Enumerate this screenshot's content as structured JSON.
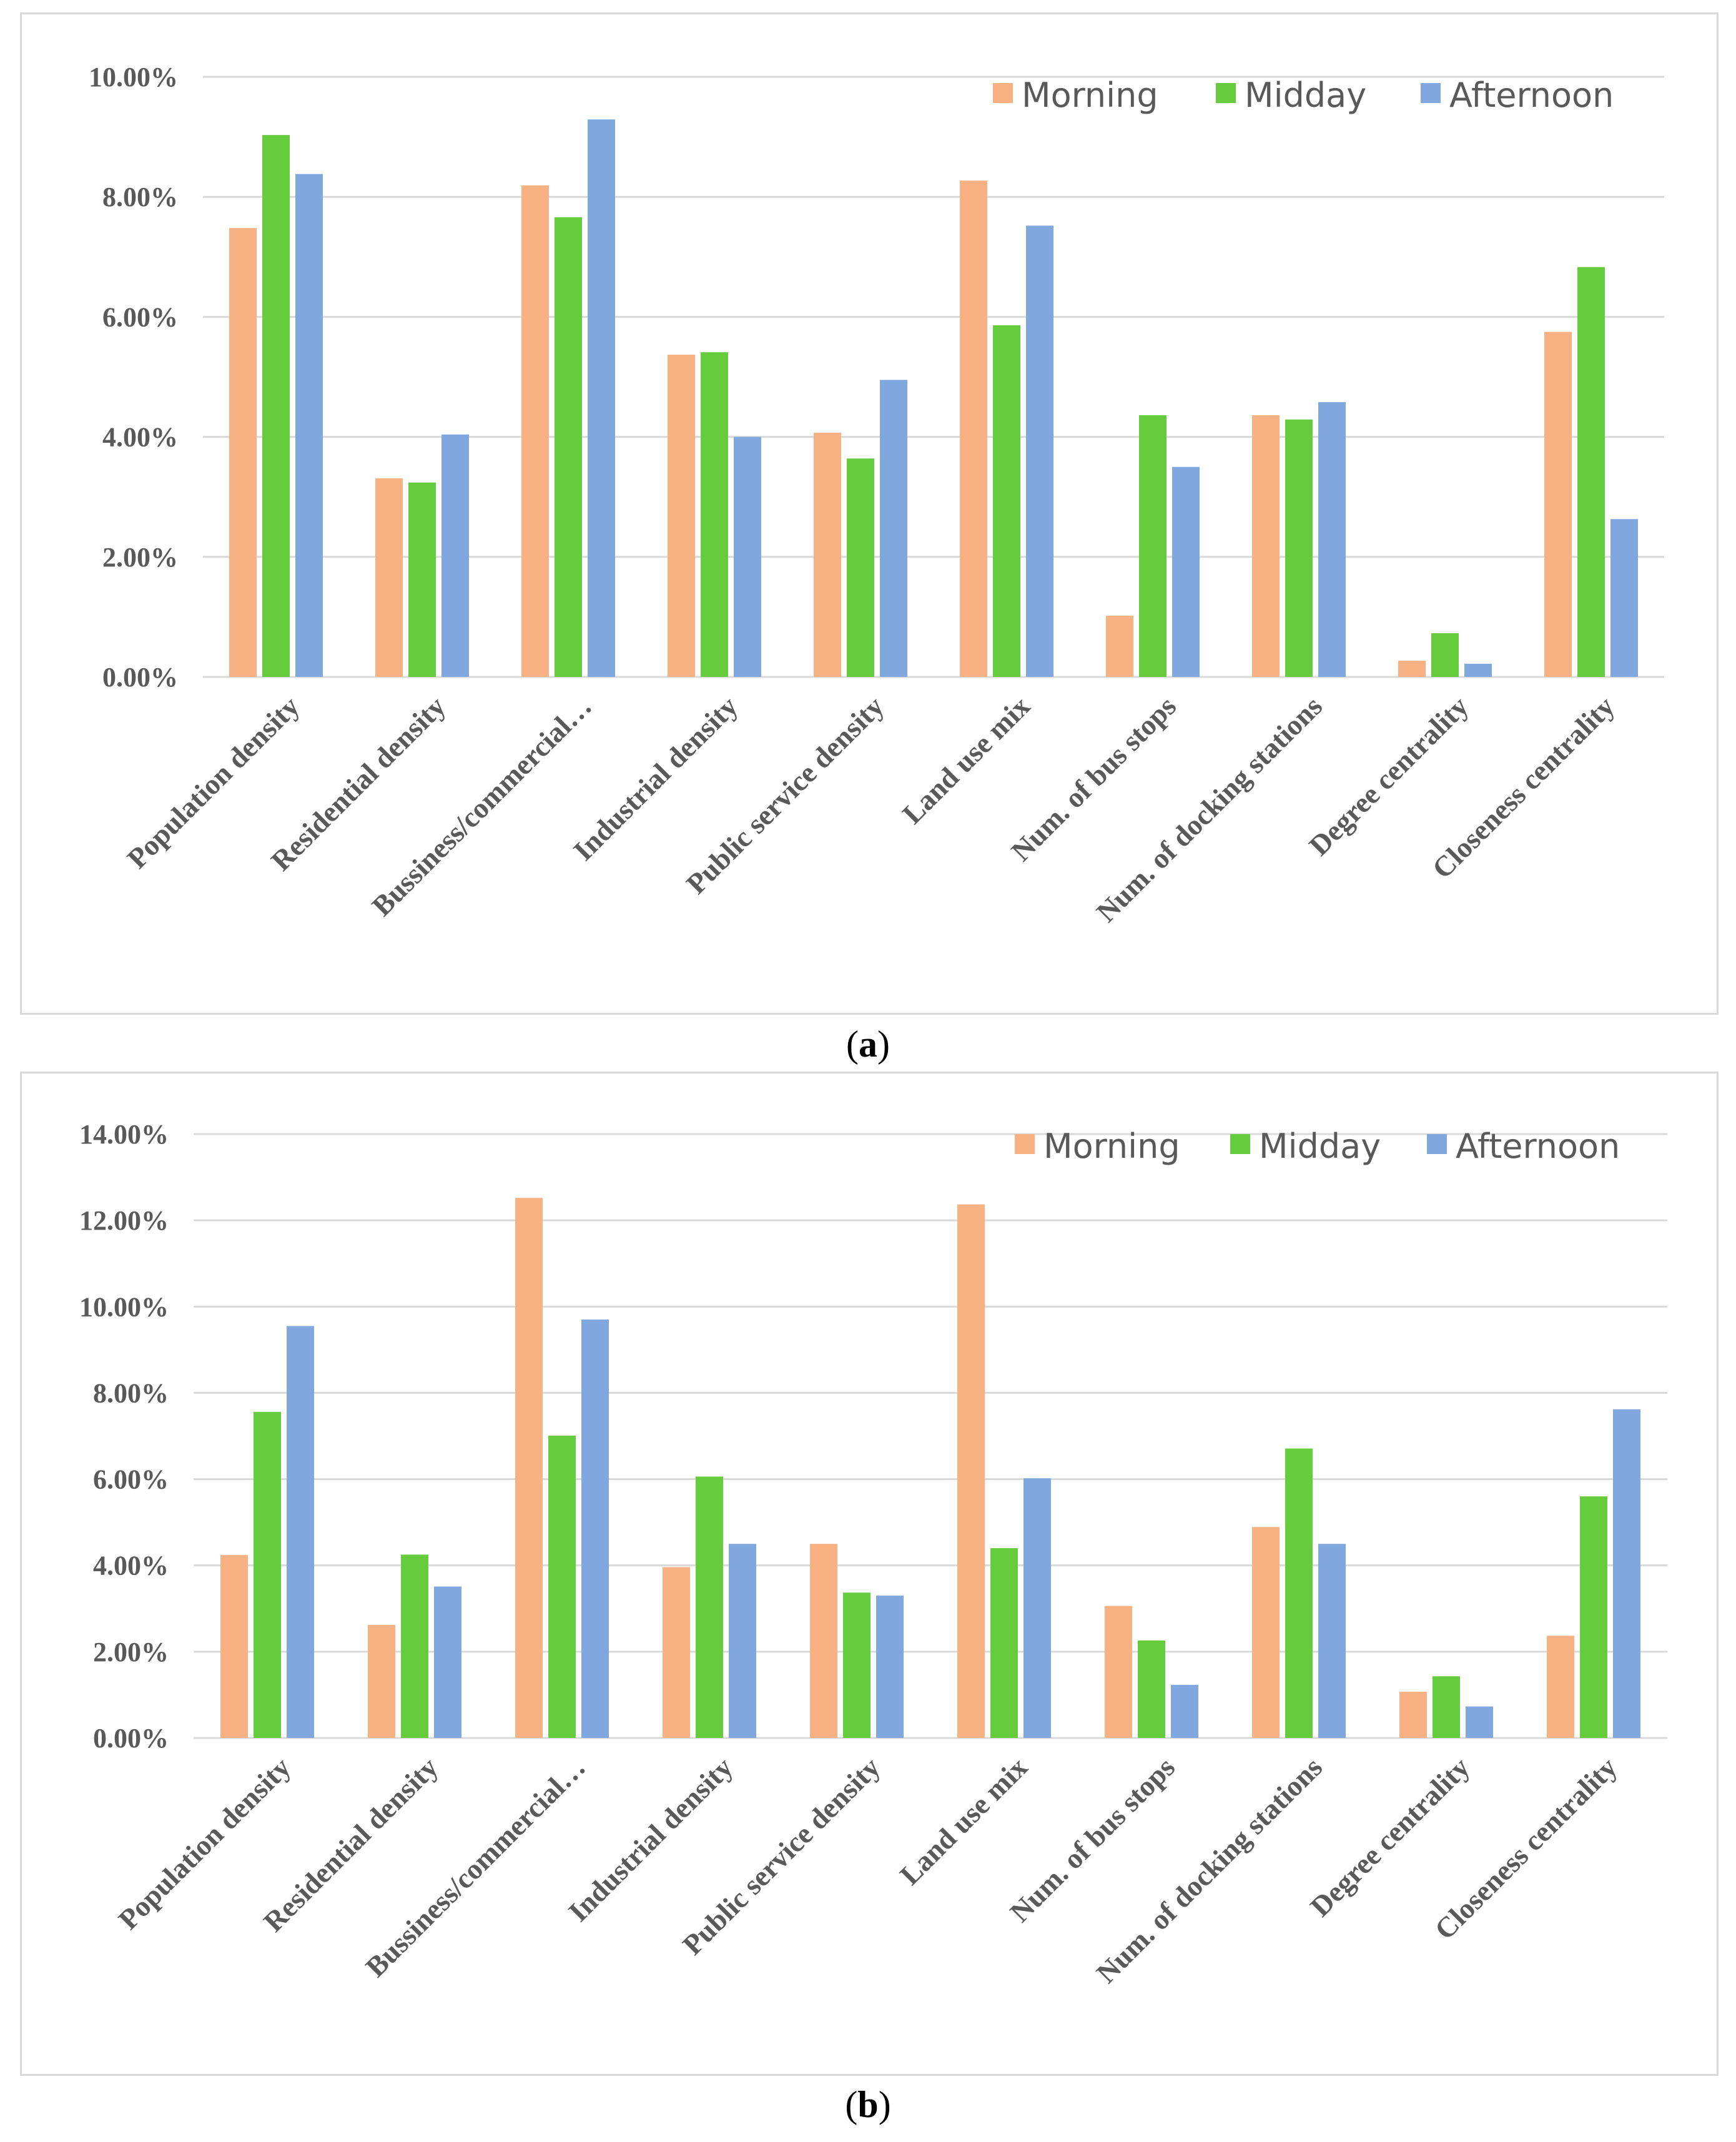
{
  "colors": {
    "morning": "#F8B183",
    "midday": "#66CC3E",
    "afternoon": "#80A8DF",
    "grid": "#d9d9d9",
    "text": "#595959"
  },
  "chart_data": [
    {
      "type": "bar",
      "caption": "a",
      "categories": [
        "Population density",
        "Residential density",
        "Bussiness/commercial…",
        "Industrial density",
        "Public service density",
        "Land use mix",
        "Num. of bus stops",
        "Num. of docking stations",
        "Degree centrality",
        "Closeness centrality"
      ],
      "series": [
        {
          "name": "Morning",
          "values": [
            7.48,
            3.31,
            8.19,
            5.37,
            4.07,
            8.27,
            1.02,
            4.36,
            0.27,
            5.75
          ]
        },
        {
          "name": "Midday",
          "values": [
            9.03,
            3.24,
            7.66,
            5.41,
            3.64,
            5.86,
            4.36,
            4.29,
            0.73,
            6.83
          ]
        },
        {
          "name": "Afternoon",
          "values": [
            8.38,
            4.04,
            9.29,
            4.0,
            4.95,
            7.52,
            3.5,
            4.58,
            0.22,
            2.63
          ]
        }
      ],
      "ylim": [
        0,
        10
      ],
      "yticks": [
        "0.00%",
        "2.00%",
        "4.00%",
        "6.00%",
        "8.00%",
        "10.00%"
      ],
      "title": "",
      "xlabel": "",
      "ylabel": "",
      "legend": "top-right"
    },
    {
      "type": "bar",
      "caption": "b",
      "categories": [
        "Population density",
        "Residential density",
        "Bussiness/commercial…",
        "Industrial density",
        "Public service density",
        "Land use mix",
        "Num. of bus stops",
        "Num. of docking stations",
        "Degree centrality",
        "Closeness centrality"
      ],
      "series": [
        {
          "name": "Morning",
          "values": [
            4.24,
            2.62,
            12.52,
            3.96,
            4.5,
            12.37,
            3.06,
            4.89,
            1.07,
            2.37
          ]
        },
        {
          "name": "Midday",
          "values": [
            7.56,
            4.25,
            7.01,
            6.06,
            3.37,
            4.4,
            2.26,
            6.71,
            1.43,
            5.6
          ]
        },
        {
          "name": "Afternoon",
          "values": [
            9.55,
            3.51,
            9.7,
            4.5,
            3.3,
            6.02,
            1.23,
            4.5,
            0.73,
            7.62
          ]
        }
      ],
      "ylim": [
        0,
        14
      ],
      "yticks": [
        "0.00%",
        "2.00%",
        "4.00%",
        "6.00%",
        "8.00%",
        "10.00%",
        "12.00%",
        "14.00%"
      ],
      "title": "",
      "xlabel": "",
      "ylabel": "",
      "legend": "top-right"
    }
  ],
  "captions": [
    {
      "open": "(",
      "label": "a",
      "close": ")"
    },
    {
      "open": "(",
      "label": "b",
      "close": ")"
    }
  ]
}
